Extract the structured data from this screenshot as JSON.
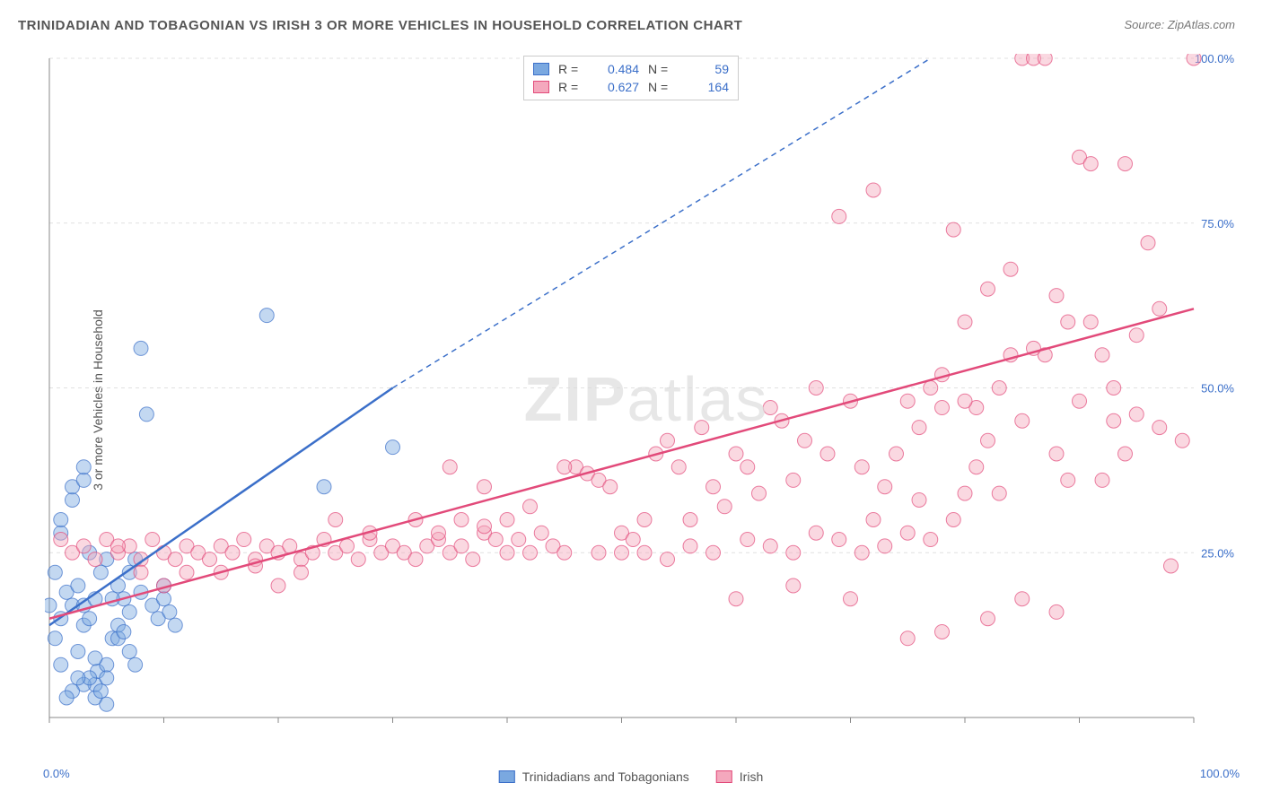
{
  "title": "TRINIDADIAN AND TOBAGONIAN VS IRISH 3 OR MORE VEHICLES IN HOUSEHOLD CORRELATION CHART",
  "source": "Source: ZipAtlas.com",
  "ylabel": "3 or more Vehicles in Household",
  "watermark": "ZIPatlas",
  "chart": {
    "type": "scatter",
    "xlim": [
      0,
      100
    ],
    "ylim": [
      0,
      100
    ],
    "xticks": [
      0,
      100
    ],
    "xtick_labels": [
      "0.0%",
      "100.0%"
    ],
    "yticks": [
      25,
      50,
      75,
      100
    ],
    "ytick_labels": [
      "25.0%",
      "50.0%",
      "75.0%",
      "100.0%"
    ],
    "grid_color": "#e0e0e0",
    "axis_color": "#888888",
    "background_color": "#ffffff",
    "tick_label_color": "#3b6fc9",
    "marker_radius": 8,
    "marker_opacity": 0.45,
    "series": [
      {
        "name": "Trinidadians and Tobagonians",
        "color_fill": "#7aa8e0",
        "color_stroke": "#3b6fc9",
        "R": "0.484",
        "N": "59",
        "trend": {
          "x1": 0,
          "y1": 14,
          "x2": 30,
          "y2": 50,
          "dash_x2": 77,
          "dash_y2": 106
        },
        "points": [
          [
            0,
            17
          ],
          [
            0.5,
            22
          ],
          [
            1,
            15
          ],
          [
            1,
            28
          ],
          [
            1.5,
            19
          ],
          [
            2,
            33
          ],
          [
            2,
            35
          ],
          [
            2.5,
            10
          ],
          [
            3,
            36
          ],
          [
            3,
            38
          ],
          [
            3,
            14
          ],
          [
            3.5,
            25
          ],
          [
            4,
            3
          ],
          [
            4,
            5
          ],
          [
            4.2,
            7
          ],
          [
            4.5,
            4
          ],
          [
            5,
            8
          ],
          [
            5,
            6
          ],
          [
            5,
            2
          ],
          [
            5.5,
            12
          ],
          [
            6,
            14
          ],
          [
            6,
            20
          ],
          [
            6.5,
            18
          ],
          [
            7,
            16
          ],
          [
            7,
            22
          ],
          [
            7.5,
            24
          ],
          [
            8,
            19
          ],
          [
            8,
            56
          ],
          [
            8.5,
            46
          ],
          [
            9,
            17
          ],
          [
            9.5,
            15
          ],
          [
            10,
            20
          ],
          [
            10,
            18
          ],
          [
            10.5,
            16
          ],
          [
            11,
            14
          ],
          [
            19,
            61
          ],
          [
            1,
            30
          ],
          [
            2,
            17
          ],
          [
            2.5,
            20
          ],
          [
            3,
            17
          ],
          [
            3.5,
            15
          ],
          [
            4,
            18
          ],
          [
            4.5,
            22
          ],
          [
            5,
            24
          ],
          [
            5.5,
            18
          ],
          [
            6,
            12
          ],
          [
            6.5,
            13
          ],
          [
            7,
            10
          ],
          [
            7.5,
            8
          ],
          [
            3,
            5
          ],
          [
            3.5,
            6
          ],
          [
            4,
            9
          ],
          [
            2,
            4
          ],
          [
            2.5,
            6
          ],
          [
            1.5,
            3
          ],
          [
            1,
            8
          ],
          [
            0.5,
            12
          ],
          [
            24,
            35
          ],
          [
            30,
            41
          ]
        ]
      },
      {
        "name": "Irish",
        "color_fill": "#f4a8bd",
        "color_stroke": "#e24a7a",
        "R": "0.627",
        "N": "164",
        "trend": {
          "x1": 0,
          "y1": 15,
          "x2": 100,
          "y2": 62
        },
        "points": [
          [
            1,
            27
          ],
          [
            2,
            25
          ],
          [
            3,
            26
          ],
          [
            4,
            24
          ],
          [
            5,
            27
          ],
          [
            6,
            25
          ],
          [
            7,
            26
          ],
          [
            8,
            24
          ],
          [
            9,
            27
          ],
          [
            10,
            25
          ],
          [
            11,
            24
          ],
          [
            12,
            26
          ],
          [
            13,
            25
          ],
          [
            14,
            24
          ],
          [
            15,
            26
          ],
          [
            16,
            25
          ],
          [
            17,
            27
          ],
          [
            18,
            24
          ],
          [
            19,
            26
          ],
          [
            20,
            25
          ],
          [
            21,
            26
          ],
          [
            22,
            24
          ],
          [
            23,
            25
          ],
          [
            24,
            27
          ],
          [
            25,
            25
          ],
          [
            26,
            26
          ],
          [
            27,
            24
          ],
          [
            28,
            27
          ],
          [
            29,
            25
          ],
          [
            30,
            26
          ],
          [
            31,
            25
          ],
          [
            32,
            24
          ],
          [
            33,
            26
          ],
          [
            34,
            27
          ],
          [
            35,
            25
          ],
          [
            36,
            26
          ],
          [
            37,
            24
          ],
          [
            38,
            28
          ],
          [
            39,
            27
          ],
          [
            40,
            25
          ],
          [
            41,
            27
          ],
          [
            42,
            25
          ],
          [
            43,
            28
          ],
          [
            44,
            26
          ],
          [
            45,
            25
          ],
          [
            46,
            38
          ],
          [
            47,
            37
          ],
          [
            48,
            36
          ],
          [
            49,
            35
          ],
          [
            50,
            28
          ],
          [
            51,
            27
          ],
          [
            52,
            30
          ],
          [
            53,
            40
          ],
          [
            54,
            42
          ],
          [
            55,
            38
          ],
          [
            56,
            30
          ],
          [
            57,
            44
          ],
          [
            58,
            35
          ],
          [
            59,
            32
          ],
          [
            60,
            40
          ],
          [
            61,
            38
          ],
          [
            62,
            34
          ],
          [
            63,
            47
          ],
          [
            64,
            45
          ],
          [
            65,
            36
          ],
          [
            66,
            42
          ],
          [
            67,
            50
          ],
          [
            68,
            40
          ],
          [
            69,
            76
          ],
          [
            70,
            48
          ],
          [
            71,
            38
          ],
          [
            72,
            30
          ],
          [
            73,
            35
          ],
          [
            74,
            40
          ],
          [
            75,
            48
          ],
          [
            76,
            33
          ],
          [
            72,
            80
          ],
          [
            77,
            50
          ],
          [
            78,
            47
          ],
          [
            79,
            74
          ],
          [
            80,
            60
          ],
          [
            80,
            34
          ],
          [
            81,
            38
          ],
          [
            82,
            65
          ],
          [
            83,
            50
          ],
          [
            84,
            55
          ],
          [
            85,
            100
          ],
          [
            86,
            100
          ],
          [
            87,
            100
          ],
          [
            88,
            40
          ],
          [
            89,
            36
          ],
          [
            90,
            85
          ],
          [
            91,
            60
          ],
          [
            92,
            55
          ],
          [
            93,
            45
          ],
          [
            94,
            84
          ],
          [
            95,
            46
          ],
          [
            96,
            72
          ],
          [
            97,
            62
          ],
          [
            98,
            23
          ],
          [
            99,
            42
          ],
          [
            100,
            100
          ],
          [
            75,
            12
          ],
          [
            78,
            13
          ],
          [
            82,
            15
          ],
          [
            85,
            18
          ],
          [
            70,
            18
          ],
          [
            60,
            18
          ],
          [
            65,
            20
          ],
          [
            88,
            16
          ],
          [
            35,
            38
          ],
          [
            38,
            35
          ],
          [
            40,
            30
          ],
          [
            42,
            32
          ],
          [
            20,
            20
          ],
          [
            15,
            22
          ],
          [
            10,
            20
          ],
          [
            8,
            22
          ],
          [
            6,
            26
          ],
          [
            12,
            22
          ],
          [
            18,
            23
          ],
          [
            22,
            22
          ],
          [
            25,
            30
          ],
          [
            28,
            28
          ],
          [
            32,
            30
          ],
          [
            34,
            28
          ],
          [
            36,
            30
          ],
          [
            38,
            29
          ],
          [
            45,
            38
          ],
          [
            48,
            25
          ],
          [
            50,
            25
          ],
          [
            52,
            25
          ],
          [
            54,
            24
          ],
          [
            56,
            26
          ],
          [
            58,
            25
          ],
          [
            61,
            27
          ],
          [
            63,
            26
          ],
          [
            65,
            25
          ],
          [
            67,
            28
          ],
          [
            69,
            27
          ],
          [
            71,
            25
          ],
          [
            73,
            26
          ],
          [
            75,
            28
          ],
          [
            77,
            27
          ],
          [
            79,
            30
          ],
          [
            81,
            47
          ],
          [
            83,
            34
          ],
          [
            85,
            45
          ],
          [
            87,
            55
          ],
          [
            89,
            60
          ],
          [
            91,
            84
          ],
          [
            93,
            50
          ],
          [
            95,
            58
          ],
          [
            97,
            44
          ],
          [
            76,
            44
          ],
          [
            78,
            52
          ],
          [
            80,
            48
          ],
          [
            82,
            42
          ],
          [
            84,
            68
          ],
          [
            86,
            56
          ],
          [
            88,
            64
          ],
          [
            90,
            48
          ],
          [
            92,
            36
          ],
          [
            94,
            40
          ]
        ]
      }
    ]
  },
  "legend_bottom": [
    {
      "label": "Trinidadians and Tobagonians",
      "fill": "#7aa8e0",
      "stroke": "#3b6fc9"
    },
    {
      "label": "Irish",
      "fill": "#f4a8bd",
      "stroke": "#e24a7a"
    }
  ]
}
